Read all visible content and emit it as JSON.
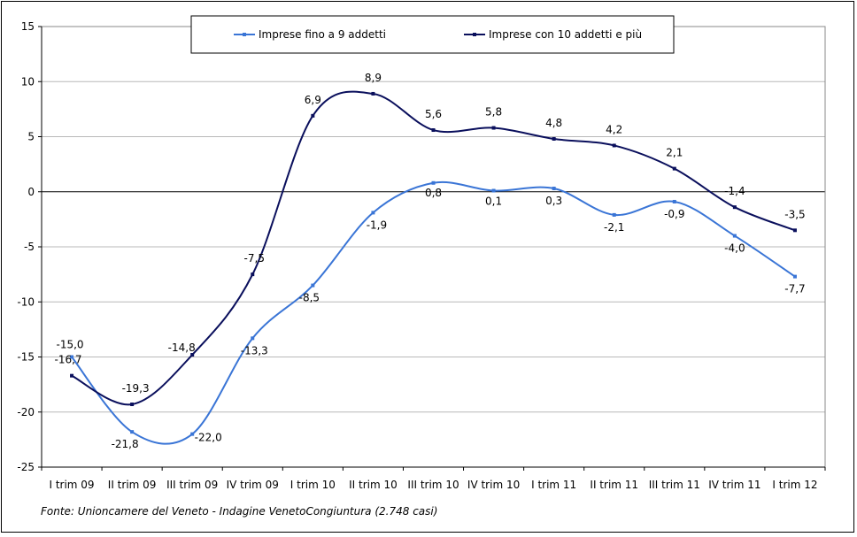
{
  "chart_data": {
    "type": "line",
    "categories": [
      "I trim 09",
      "II trim 09",
      "III trim 09",
      "IV trim 09",
      "I trim 10",
      "II trim 10",
      "III trim 10",
      "IV trim 10",
      "I trim 11",
      "II trim 11",
      "III trim 11",
      "IV trim 11",
      "I trim 12"
    ],
    "series": [
      {
        "name": "Imprese fino a 9 addetti",
        "color": "#3a75d6",
        "values": [
          -15.0,
          -21.8,
          -22.0,
          -13.3,
          -8.5,
          -1.9,
          0.8,
          0.1,
          0.3,
          -2.1,
          -0.9,
          -4.0,
          -7.7
        ],
        "labels": [
          "-15,0",
          "-21,8",
          "-22,0",
          "-13,3",
          "-8,5",
          "-1,9",
          "0,8",
          "0,1",
          "0,3",
          "-2,1",
          "-0,9",
          "-4,0",
          "-7,7"
        ]
      },
      {
        "name": "Imprese con 10 addetti e più",
        "color": "#0a0f5c",
        "values": [
          -16.7,
          -19.3,
          -14.8,
          -7.5,
          6.9,
          8.9,
          5.6,
          5.8,
          4.8,
          4.2,
          2.1,
          -1.4,
          -3.5
        ],
        "labels": [
          "-16,7",
          "-19,3",
          "-14,8",
          "-7,5",
          "6,9",
          "8,9",
          "5,6",
          "5,8",
          "4,8",
          "4,2",
          "2,1",
          "-1,4",
          "-3,5"
        ]
      }
    ],
    "ylim": [
      -25,
      15
    ],
    "yticks": [
      15,
      10,
      5,
      0,
      -5,
      -10,
      -15,
      -20,
      -25
    ],
    "grid": true,
    "legend": "top",
    "source": "Fonte: Unioncamere del Veneto - Indagine VenetoCongiuntura (2.748 casi)"
  }
}
